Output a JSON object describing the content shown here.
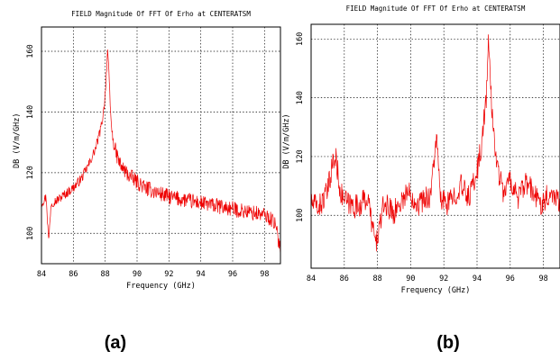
{
  "panels": [
    {
      "label": "(a)",
      "chart_data": {
        "type": "line",
        "title": "FIELD Magnitude Of FFT Of Erho at CENTERATSM",
        "xlabel": "Frequency  (GHz)",
        "ylabel": "DB  (V/m/GHz)",
        "xlim": [
          84,
          99
        ],
        "ylim": [
          90,
          168
        ],
        "xticks": [
          84,
          86,
          88,
          90,
          92,
          94,
          96,
          98
        ],
        "yticks": [
          100,
          120,
          140,
          160
        ],
        "grid": true,
        "series": [
          {
            "color": "#ee0000",
            "x": [
              84.0,
              84.3,
              84.45,
              84.6,
              85.0,
              85.5,
              86.0,
              86.5,
              87.0,
              87.4,
              87.7,
              87.9,
              88.05,
              88.15,
              88.25,
              88.35,
              88.5,
              88.7,
              89.0,
              89.5,
              90.0,
              90.5,
              91.0,
              92.0,
              93.0,
              94.0,
              95.0,
              96.0,
              97.0,
              98.0,
              98.6,
              99.0
            ],
            "y": [
              110,
              112,
              97,
              110,
              111,
              113,
              115,
              118,
              123,
              128,
              134,
              140,
              150,
              161,
              150,
              138,
              130,
              126,
              122,
              119,
              117,
              115,
              114,
              112,
              111,
              110,
              109,
              108,
              107,
              106,
              104,
              95
            ]
          }
        ]
      }
    },
    {
      "label": "(b)",
      "chart_data": {
        "type": "line",
        "title": "FIELD Magnitude Of FFT Of Erho at CENTERATSM",
        "xlabel": "Frequency  (GHz)",
        "ylabel": "DB  (V/m/GHz)",
        "xlim": [
          84,
          99
        ],
        "ylim": [
          82,
          165
        ],
        "xticks": [
          84,
          86,
          88,
          90,
          92,
          94,
          96,
          98
        ],
        "yticks": [
          100,
          120,
          140,
          160
        ],
        "grid": true,
        "series": [
          {
            "color": "#ee0000",
            "x": [
              84.0,
              84.5,
              85.0,
              85.3,
              85.5,
              85.8,
              86.2,
              86.8,
              87.4,
              87.9,
              88.4,
              89.0,
              89.8,
              90.5,
              91.2,
              91.55,
              91.8,
              92.3,
              93.0,
              93.5,
              94.0,
              94.3,
              94.55,
              94.7,
              94.9,
              95.2,
              95.6,
              96.0,
              96.5,
              97.0,
              97.8,
              98.5,
              99.0
            ],
            "y": [
              104,
              103,
              108,
              118,
              119,
              107,
              104,
              103,
              106,
              90,
              104,
              101,
              108,
              104,
              107,
              127,
              105,
              104,
              110,
              106,
              115,
              125,
              140,
              159,
              135,
              117,
              108,
              112,
              106,
              111,
              104,
              108,
              105
            ]
          }
        ]
      }
    }
  ]
}
